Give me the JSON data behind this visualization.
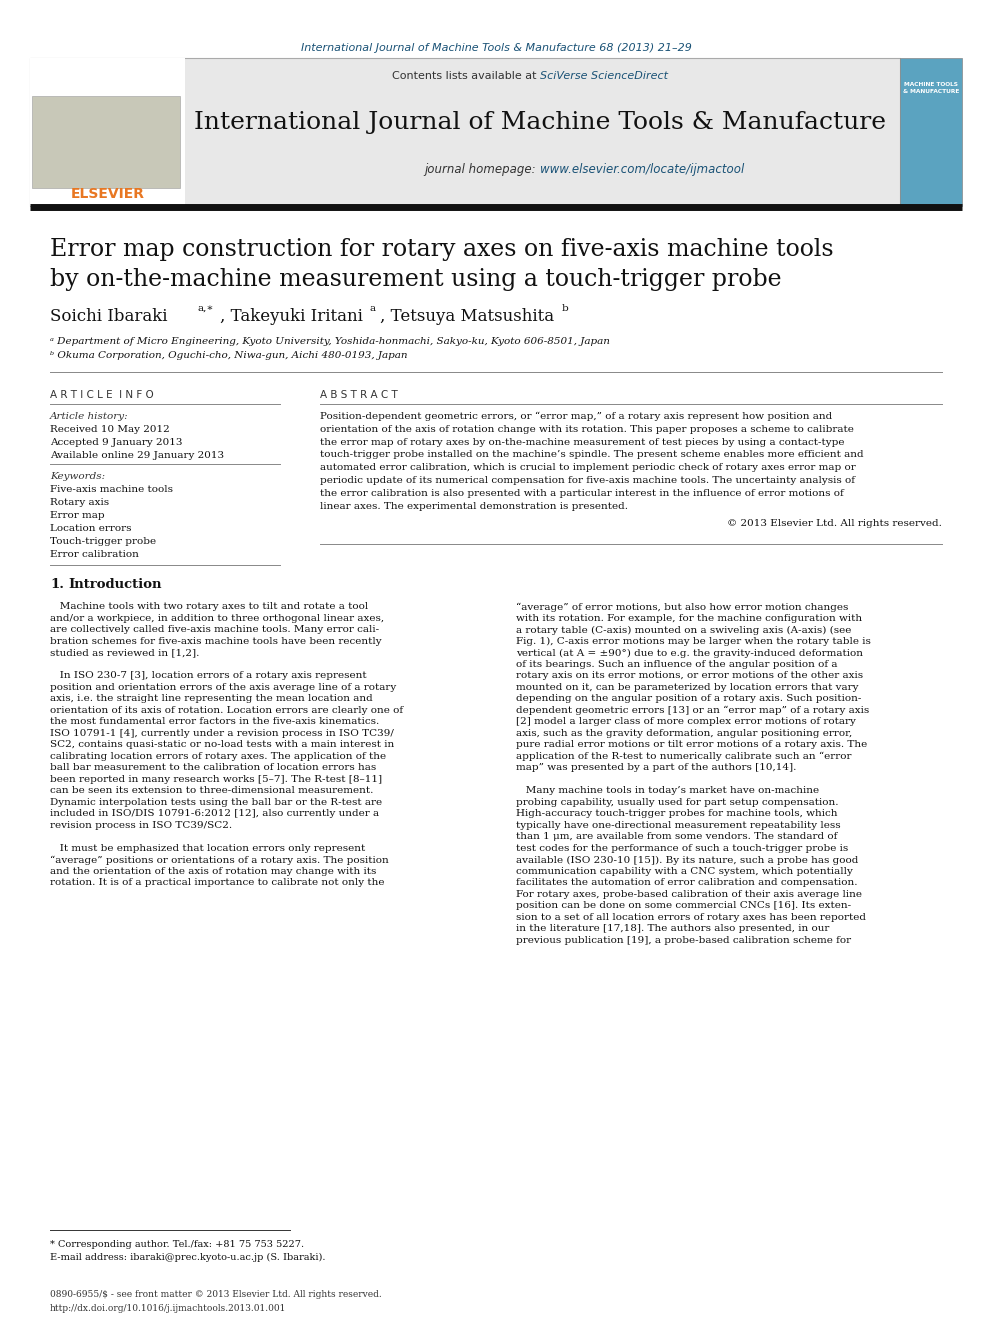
{
  "page_width": 9.92,
  "page_height": 13.23,
  "bg_color": "#ffffff",
  "journal_ref": "International Journal of Machine Tools & Manufacture 68 (2013) 21–29",
  "journal_ref_color": "#1a5276",
  "header_bg": "#e8e8e8",
  "header_text1": "Contents lists available at ",
  "header_sciverse": "SciVerse ScienceDirect",
  "header_sciverse_color": "#1a5276",
  "journal_title": "International Journal of Machine Tools & Manufacture",
  "journal_homepage_text": "journal homepage: ",
  "journal_homepage_url": "www.elsevier.com/locate/ijmactool",
  "journal_homepage_url_color": "#1a5276",
  "paper_title_line1": "Error map construction for rotary axes on five-axis machine tools",
  "paper_title_line2": "by on-the-machine measurement using a touch-trigger probe",
  "affil_a": "ᵃ Department of Micro Engineering, Kyoto University, Yoshida-honmachi, Sakyo-ku, Kyoto 606-8501, Japan",
  "affil_b": "ᵇ Okuma Corporation, Oguchi-cho, Niwa-gun, Aichi 480-0193, Japan",
  "section_article_info": "A R T I C L E  I N F O",
  "section_abstract": "A B S T R A C T",
  "article_history_label": "Article history:",
  "received": "Received 10 May 2012",
  "accepted": "Accepted 9 January 2013",
  "available": "Available online 29 January 2013",
  "keywords_label": "Keywords:",
  "keywords": [
    "Five-axis machine tools",
    "Rotary axis",
    "Error map",
    "Location errors",
    "Touch-trigger probe",
    "Error calibration"
  ],
  "copyright": "© 2013 Elsevier Ltd. All rights reserved.",
  "footnote_star": "* Corresponding author. Tel./fax: +81 75 753 5227.",
  "footnote_email": "E-mail address: ibaraki@prec.kyoto-u.ac.jp (S. Ibaraki).",
  "footer_issn": "0890-6955/$ - see front matter © 2013 Elsevier Ltd. All rights reserved.",
  "footer_doi": "http://dx.doi.org/10.1016/j.ijmachtools.2013.01.001"
}
